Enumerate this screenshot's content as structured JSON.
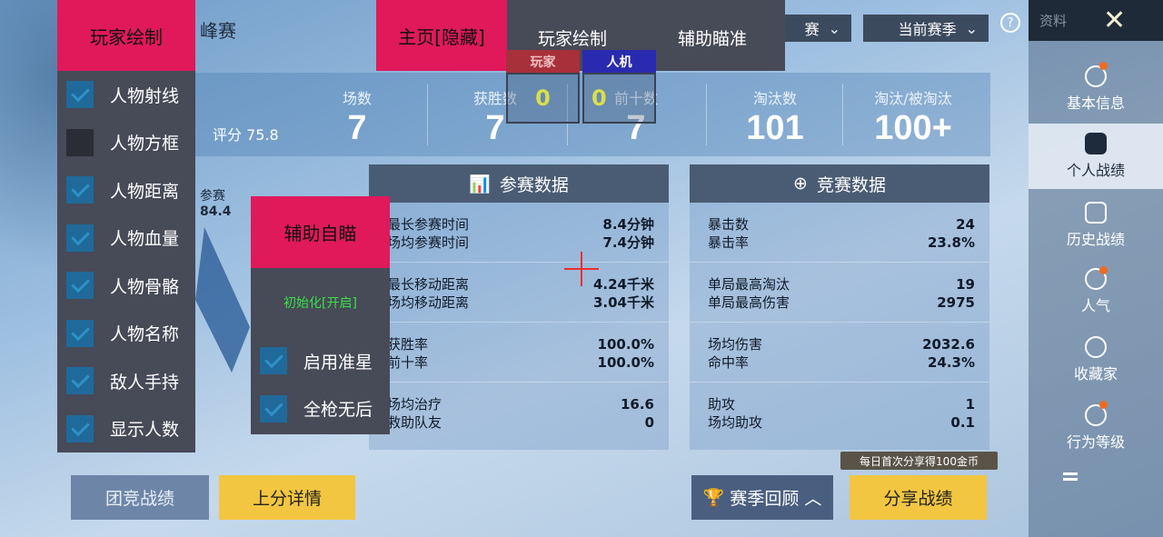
{
  "header": {
    "title_partial": "峰赛",
    "mode_dropdown": "赛",
    "season_dropdown": "当前赛季",
    "help": "?"
  },
  "stats": {
    "rating_label": "评分",
    "rating": "75.8",
    "items": [
      {
        "label": "场数",
        "value": "7"
      },
      {
        "label": "获胜数",
        "value": "7"
      },
      {
        "label": "前十数",
        "value": "7"
      },
      {
        "label": "淘汰数",
        "value": "101"
      },
      {
        "label": "淘汰/被淘汰",
        "value": "100+"
      }
    ]
  },
  "radar": {
    "label": "参赛",
    "value": "84.4"
  },
  "panels": [
    {
      "title": "参赛数据",
      "icon": "bar-chart-icon",
      "rows": [
        {
          "l1": "最长参赛时间",
          "l2": "场均参赛时间",
          "v1": "8.4分钟",
          "v2": "7.4分钟"
        },
        {
          "l1": "最长移动距离",
          "l2": "场均移动距离",
          "v1": "4.24千米",
          "v2": "3.04千米"
        },
        {
          "l1": "获胜率",
          "l2": "前十率",
          "v1": "100.0%",
          "v2": "100.0%"
        },
        {
          "l1": "场均治疗",
          "l2": "救助队友",
          "v1": "16.6",
          "v2": "0"
        }
      ]
    },
    {
      "title": "竞赛数据",
      "icon": "crosshair-icon",
      "rows": [
        {
          "l1": "暴击数",
          "l2": "暴击率",
          "v1": "24",
          "v2": "23.8%"
        },
        {
          "l1": "单局最高淘汰",
          "l2": "单局最高伤害",
          "v1": "19",
          "v2": "2975"
        },
        {
          "l1": "场均伤害",
          "l2": "命中率",
          "v1": "2032.6",
          "v2": "24.3%"
        },
        {
          "l1": "助攻",
          "l2": "场均助攻",
          "v1": "1",
          "v2": "0.1"
        }
      ]
    }
  ],
  "buttons": {
    "team": "团竞战绩",
    "rank": "上分详情",
    "season_review": "赛季回顾",
    "share": "分享战绩",
    "share_tip": "每日首次分享得100金币"
  },
  "sidebar": {
    "title": "资料",
    "items": [
      {
        "label": "基本信息",
        "dot": true
      },
      {
        "label": "个人战绩",
        "selected": true
      },
      {
        "label": "历史战绩"
      },
      {
        "label": "人气",
        "dot": true
      },
      {
        "label": "收藏家"
      },
      {
        "label": "行为等级",
        "dot": true
      }
    ]
  },
  "overlay": {
    "accent": "#e0195a",
    "top_tabs": {
      "home": "主页[隐藏]",
      "player_draw": "玩家绘制",
      "aim_assist": "辅助瞄准"
    },
    "counters": {
      "player_label": "玩家",
      "player_value": "0",
      "bot_label": "人机",
      "bot_value": "0"
    },
    "player_menu": {
      "title": "玩家绘制",
      "items": [
        {
          "label": "人物射线",
          "checked": true
        },
        {
          "label": "人物方框",
          "checked": false
        },
        {
          "label": "人物距离",
          "checked": true
        },
        {
          "label": "人物血量",
          "checked": true
        },
        {
          "label": "人物骨骼",
          "checked": true
        },
        {
          "label": "人物名称",
          "checked": true
        },
        {
          "label": "敌人手持",
          "checked": true
        },
        {
          "label": "显示人数",
          "checked": true
        }
      ]
    },
    "aim_menu": {
      "title": "辅助自瞄",
      "status": "初始化[开启]",
      "items": [
        {
          "label": "启用准星",
          "checked": true
        },
        {
          "label": "全枪无后",
          "checked": true
        }
      ]
    }
  }
}
